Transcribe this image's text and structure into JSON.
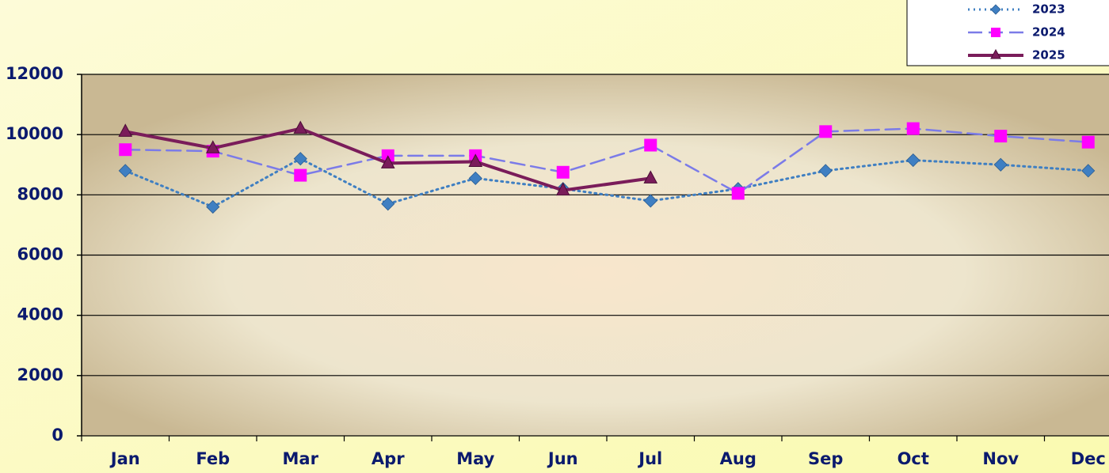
{
  "chart_data": {
    "type": "line",
    "categories": [
      "Jan",
      "Feb",
      "Mar",
      "Apr",
      "May",
      "Jun",
      "Jul",
      "Aug",
      "Sep",
      "Oct",
      "Nov",
      "Dec"
    ],
    "series": [
      {
        "name": "2023",
        "color": "#3f7fc2",
        "marker": "diamond",
        "dash": "dotted",
        "values": [
          8800,
          7600,
          9200,
          7700,
          8550,
          8200,
          7800,
          8200,
          8800,
          9150,
          9000,
          8800
        ]
      },
      {
        "name": "2024",
        "color": "#ff00ff",
        "line_color": "#7b7be8",
        "marker": "square",
        "dash": "dashed",
        "values": [
          9500,
          9450,
          8650,
          9300,
          9300,
          8750,
          9650,
          8050,
          10100,
          10200,
          9950,
          9750
        ]
      },
      {
        "name": "2025",
        "color": "#7a1c5a",
        "marker": "triangle",
        "dash": "solid",
        "values": [
          10100,
          9550,
          10200,
          9050,
          9100,
          8150,
          8550,
          null,
          null,
          null,
          null,
          null
        ]
      }
    ],
    "ylim": [
      0,
      12000
    ],
    "yticks": [
      0,
      2000,
      4000,
      6000,
      8000,
      10000,
      12000
    ],
    "grid": true,
    "legend": "top-right"
  }
}
